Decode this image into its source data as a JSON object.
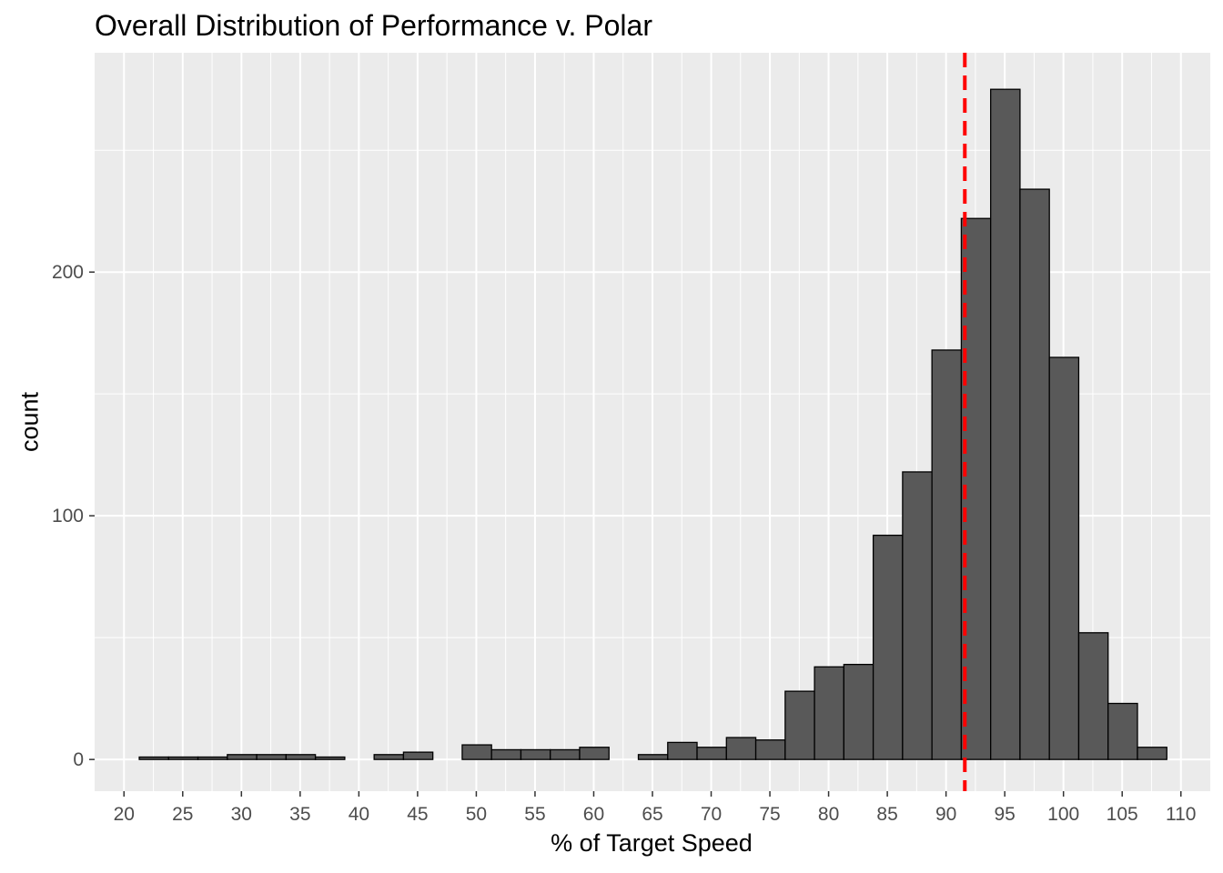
{
  "chart_data": {
    "type": "histogram",
    "title": "Overall Distribution of Performance v. Polar",
    "xlabel": "% of Target Speed",
    "ylabel": "count",
    "xlim": [
      17.5,
      112.5
    ],
    "ylim": [
      -13,
      290
    ],
    "x_ticks": [
      20,
      25,
      30,
      35,
      40,
      45,
      50,
      55,
      60,
      65,
      70,
      75,
      80,
      85,
      90,
      95,
      100,
      105,
      110
    ],
    "y_ticks": [
      0,
      100,
      200
    ],
    "grid": true,
    "bin_width": 2.5,
    "bins": [
      {
        "x0": 21.3,
        "count": 1
      },
      {
        "x0": 23.8,
        "count": 1
      },
      {
        "x0": 26.3,
        "count": 1
      },
      {
        "x0": 28.8,
        "count": 2
      },
      {
        "x0": 31.3,
        "count": 2
      },
      {
        "x0": 33.8,
        "count": 2
      },
      {
        "x0": 36.3,
        "count": 1
      },
      {
        "x0": 38.8,
        "count": 0
      },
      {
        "x0": 41.3,
        "count": 2
      },
      {
        "x0": 43.8,
        "count": 3
      },
      {
        "x0": 46.3,
        "count": 0
      },
      {
        "x0": 48.8,
        "count": 6
      },
      {
        "x0": 51.3,
        "count": 4
      },
      {
        "x0": 53.8,
        "count": 4
      },
      {
        "x0": 56.3,
        "count": 4
      },
      {
        "x0": 58.8,
        "count": 5
      },
      {
        "x0": 61.3,
        "count": 0
      },
      {
        "x0": 63.8,
        "count": 2
      },
      {
        "x0": 66.3,
        "count": 7
      },
      {
        "x0": 68.8,
        "count": 5
      },
      {
        "x0": 71.3,
        "count": 9
      },
      {
        "x0": 73.8,
        "count": 8
      },
      {
        "x0": 76.3,
        "count": 28
      },
      {
        "x0": 78.8,
        "count": 38
      },
      {
        "x0": 81.3,
        "count": 39
      },
      {
        "x0": 83.8,
        "count": 92
      },
      {
        "x0": 86.3,
        "count": 118
      },
      {
        "x0": 88.8,
        "count": 168
      },
      {
        "x0": 91.3,
        "count": 222
      },
      {
        "x0": 93.8,
        "count": 275
      },
      {
        "x0": 96.3,
        "count": 234
      },
      {
        "x0": 98.8,
        "count": 165
      },
      {
        "x0": 101.3,
        "count": 52
      },
      {
        "x0": 103.8,
        "count": 23
      },
      {
        "x0": 106.3,
        "count": 5
      }
    ],
    "reference_line": {
      "x": 91.6,
      "color": "#ff0000",
      "style": "dashed"
    },
    "bar_fill": "#595959",
    "bar_stroke": "#000000",
    "panel_background": "#ebebeb"
  }
}
